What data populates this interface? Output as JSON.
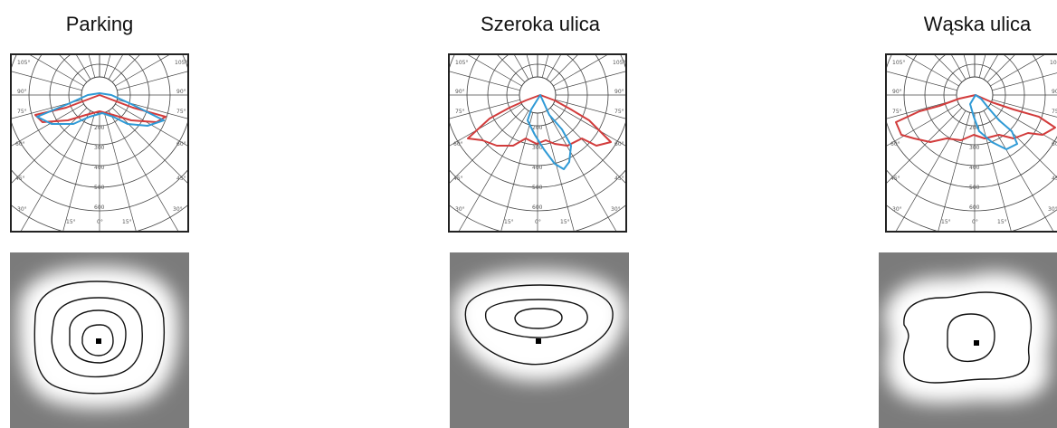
{
  "panels": [
    {
      "id": "parking",
      "title": "Parking"
    },
    {
      "id": "szeroka",
      "title": "Szeroka ulica"
    },
    {
      "id": "waska",
      "title": "Wąska ulica"
    }
  ],
  "polar_ticks": {
    "angles": [
      "105°",
      "90°",
      "75°",
      "60°",
      "45°",
      "30°",
      "15°",
      "0°",
      "15°",
      "30°",
      "45°",
      "60°",
      "75°",
      "90°",
      "105°"
    ],
    "radial": [
      "200",
      "300",
      "400",
      "500",
      "600"
    ]
  },
  "colors": {
    "c0_curve": "#d23c3c",
    "c90_curve": "#2f9ad6",
    "grid": "#444444",
    "iso_background": "#7b7b7b",
    "iso_glow": "#ffffff"
  }
}
